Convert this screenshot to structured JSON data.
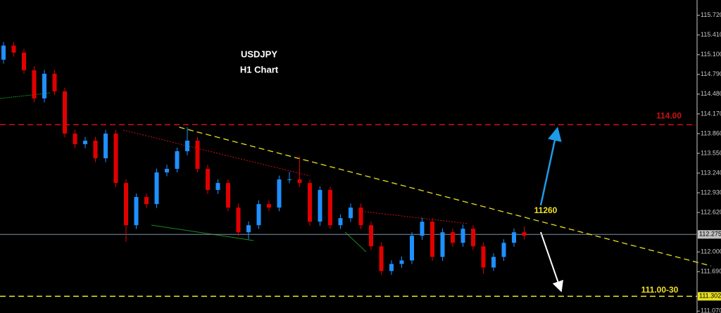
{
  "chart_data": {
    "type": "candlestick",
    "title": "USDJPY",
    "subtitle": "H1 Chart",
    "candles": [
      [
        115.022,
        115.3,
        114.96,
        115.244
      ],
      [
        115.244,
        115.3,
        115.07,
        115.133
      ],
      [
        115.133,
        115.19,
        114.8,
        114.856
      ],
      [
        114.856,
        114.92,
        114.35,
        114.413
      ],
      [
        114.413,
        114.86,
        114.35,
        114.801
      ],
      [
        114.801,
        114.86,
        114.46,
        114.524
      ],
      [
        114.524,
        114.58,
        113.8,
        113.86
      ],
      [
        113.86,
        113.92,
        113.63,
        113.693
      ],
      [
        113.693,
        113.81,
        113.63,
        113.749
      ],
      [
        113.749,
        113.81,
        113.41,
        113.472
      ],
      [
        113.472,
        113.92,
        113.41,
        113.86
      ],
      [
        113.86,
        113.92,
        113.02,
        113.084
      ],
      [
        113.084,
        113.14,
        112.16,
        112.42
      ],
      [
        112.42,
        112.92,
        112.36,
        112.863
      ],
      [
        112.863,
        112.92,
        112.69,
        112.752
      ],
      [
        112.752,
        113.31,
        112.69,
        113.25
      ],
      [
        113.25,
        113.37,
        113.19,
        113.306
      ],
      [
        113.306,
        113.64,
        113.25,
        113.583
      ],
      [
        113.583,
        113.96,
        113.52,
        113.749
      ],
      [
        113.749,
        113.81,
        113.25,
        113.306
      ],
      [
        113.306,
        113.37,
        112.91,
        112.974
      ],
      [
        112.974,
        113.14,
        112.91,
        113.084
      ],
      [
        113.084,
        113.14,
        112.64,
        112.697
      ],
      [
        112.697,
        112.76,
        112.25,
        112.309
      ],
      [
        112.309,
        112.48,
        112.2,
        112.42
      ],
      [
        112.42,
        112.81,
        112.36,
        112.752
      ],
      [
        112.752,
        112.81,
        112.64,
        112.697
      ],
      [
        112.697,
        113.2,
        112.64,
        113.14
      ],
      [
        113.14,
        113.26,
        113.08,
        113.14
      ],
      [
        113.14,
        113.5,
        113.02,
        113.084
      ],
      [
        113.084,
        113.14,
        112.41,
        112.475
      ],
      [
        112.475,
        113.03,
        112.41,
        112.974
      ],
      [
        112.974,
        113.03,
        112.36,
        112.42
      ],
      [
        112.42,
        112.59,
        112.36,
        112.531
      ],
      [
        112.531,
        112.76,
        112.47,
        112.697
      ],
      [
        112.697,
        112.76,
        112.36,
        112.42
      ],
      [
        112.42,
        112.48,
        112.03,
        112.088
      ],
      [
        112.088,
        112.15,
        111.64,
        111.7
      ],
      [
        111.7,
        111.87,
        111.64,
        111.811
      ],
      [
        111.811,
        111.93,
        111.75,
        111.866
      ],
      [
        111.866,
        112.31,
        111.81,
        112.254
      ],
      [
        112.254,
        112.54,
        112.19,
        112.475
      ],
      [
        112.475,
        112.53,
        111.86,
        111.922
      ],
      [
        111.922,
        112.37,
        111.86,
        112.309
      ],
      [
        112.309,
        112.37,
        112.08,
        112.143
      ],
      [
        112.143,
        112.43,
        112.08,
        112.365
      ],
      [
        112.365,
        112.42,
        112.03,
        112.088
      ],
      [
        112.088,
        112.15,
        111.66,
        111.755
      ],
      [
        111.755,
        111.98,
        111.7,
        111.922
      ],
      [
        111.922,
        112.2,
        111.86,
        112.143
      ],
      [
        112.143,
        112.37,
        112.08,
        112.309
      ],
      [
        112.309,
        112.4,
        112.2,
        112.254
      ]
    ],
    "up_color": "#1e90ff",
    "down_color": "#e00000",
    "ylim": [
      111.04,
      115.96
    ],
    "yticks": [
      {
        "value": 115.72,
        "label": "115.720"
      },
      {
        "value": 115.41,
        "label": "115.410"
      },
      {
        "value": 115.1,
        "label": "115.100"
      },
      {
        "value": 114.79,
        "label": "114.790"
      },
      {
        "value": 114.48,
        "label": "114.480"
      },
      {
        "value": 114.17,
        "label": "114.170"
      },
      {
        "value": 113.86,
        "label": "113.860"
      },
      {
        "value": 113.55,
        "label": "113.550"
      },
      {
        "value": 113.24,
        "label": "113.240"
      },
      {
        "value": 112.93,
        "label": "112.930"
      },
      {
        "value": 112.62,
        "label": "112.620"
      },
      {
        "value": 112.0,
        "label": "112.000"
      },
      {
        "value": 111.69,
        "label": "111.690"
      },
      {
        "value": 111.07,
        "label": "111.070"
      }
    ],
    "levels": [
      {
        "value": 112.275,
        "color": "#7f93a6",
        "axis_box": "#c0c0c0"
      },
      {
        "value": 111.302,
        "color": "#e8e020",
        "axis_box": "#e8e020",
        "dashed": true
      },
      {
        "value": 114.0,
        "label": "114.00",
        "color": "#cc1111",
        "dashed": true
      }
    ],
    "trendline": {
      "from": [
        17.2,
        113.96
      ],
      "to": [
        69.3,
        111.78
      ],
      "color": "#e8e020"
    },
    "annotations": {
      "resistance": "11260",
      "target": "111.00-30"
    },
    "grid": false
  }
}
